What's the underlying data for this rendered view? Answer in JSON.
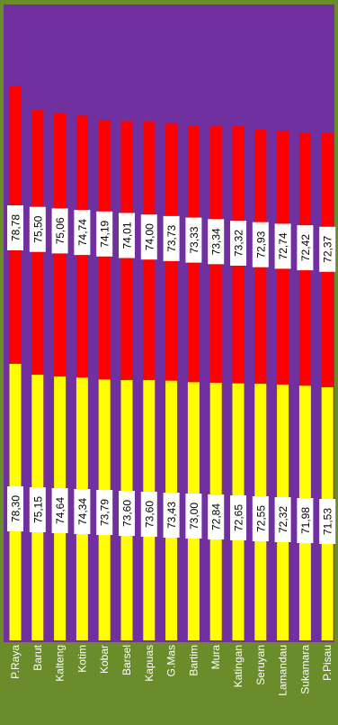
{
  "chart_data": {
    "type": "bar",
    "orientation": "vertical-stacked-overlay",
    "label_rotation": -90,
    "categories": [
      "P.Raya",
      "Barut",
      "Kalteng",
      "Kotim",
      "Kobar",
      "Barsel",
      "Kapuas",
      "G.Mas",
      "Bartim",
      "Mura",
      "Katingan",
      "Seruyan",
      "Lamandau",
      "Sukamara",
      "P.Pisau"
    ],
    "series": [
      {
        "values": [
          78.78,
          75.5,
          75.06,
          74.74,
          74.19,
          74.01,
          74.0,
          73.73,
          73.33,
          73.34,
          73.32,
          72.93,
          72.74,
          72.42,
          72.37
        ],
        "labels": [
          "78,78",
          "75,50",
          "75,06",
          "74,74",
          "74,19",
          "74,01",
          "74,00",
          "73,73",
          "73,33",
          "73,34",
          "73,32",
          "72,93",
          "72,74",
          "72,42",
          "72,37"
        ],
        "color": "#ff0000"
      },
      {
        "values": [
          78.3,
          75.15,
          74.64,
          74.34,
          73.79,
          73.6,
          73.6,
          73.43,
          73.0,
          72.84,
          72.65,
          72.55,
          72.32,
          71.98,
          71.53
        ],
        "labels": [
          "78,30",
          "75,15",
          "74,64",
          "74,34",
          "73,79",
          "73,60",
          "73,60",
          "73,43",
          "73,00",
          "72,84",
          "72,65",
          "72,55",
          "72,32",
          "71,98",
          "71,53"
        ],
        "color": "#ffff00"
      }
    ],
    "plot_background": "#7030a0",
    "border_color": "#6b8c2a",
    "grid": false,
    "legend": "none"
  }
}
